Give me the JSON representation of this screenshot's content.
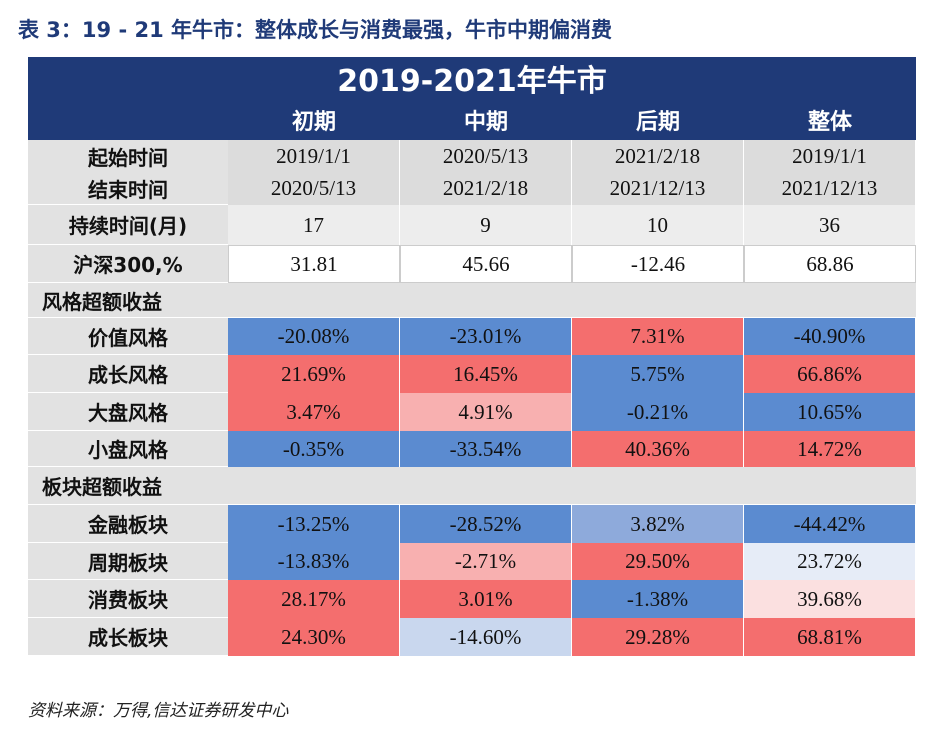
{
  "title": "表 3：19 - 21 年牛市：整体成长与消费最强，牛市中期偏消费",
  "table": {
    "banner": "2019-2021年牛市",
    "columns": [
      "初期",
      "中期",
      "后期",
      "整体"
    ],
    "rows": [
      {
        "label": "起始时间",
        "cells": [
          "2019/1/1",
          "2020/5/13",
          "2021/2/18",
          "2019/1/1"
        ],
        "colors": [
          "#dcdcdc",
          "#dcdcdc",
          "#dcdcdc",
          "#dcdcdc"
        ]
      },
      {
        "label": "结束时间",
        "cells": [
          "2020/5/13",
          "2021/2/18",
          "2021/12/13",
          "2021/12/13"
        ],
        "colors": [
          "#dcdcdc",
          "#dcdcdc",
          "#dcdcdc",
          "#dcdcdc"
        ]
      },
      {
        "label": "持续时间(月)",
        "cells": [
          "17",
          "9",
          "10",
          "36"
        ],
        "colors": [
          "#ededed",
          "#ededed",
          "#ededed",
          "#ededed"
        ]
      },
      {
        "label": "沪深300,%",
        "cells": [
          "31.81",
          "45.66",
          "-12.46",
          "68.86"
        ],
        "colors": [
          "#ffffff",
          "#ffffff",
          "#ffffff",
          "#ffffff"
        ]
      },
      {
        "label": "风格超额收益"
      },
      {
        "label": "价值风格",
        "cells": [
          "-20.08%",
          "-23.01%",
          "7.31%",
          "-40.90%"
        ],
        "colors": [
          "#5b8bd0",
          "#5b8bd0",
          "#f46e6e",
          "#5b8bd0"
        ]
      },
      {
        "label": "成长风格",
        "cells": [
          "21.69%",
          "16.45%",
          "5.75%",
          "66.86%"
        ],
        "colors": [
          "#f46e6e",
          "#f46e6e",
          "#5b8bd0",
          "#f46e6e"
        ]
      },
      {
        "label": "大盘风格",
        "cells": [
          "3.47%",
          "4.91%",
          "-0.21%",
          "10.65%"
        ],
        "colors": [
          "#f46e6e",
          "#f8b0b0",
          "#5b8bd0",
          "#5b8bd0"
        ]
      },
      {
        "label": "小盘风格",
        "cells": [
          "-0.35%",
          "-33.54%",
          "40.36%",
          "14.72%"
        ],
        "colors": [
          "#5b8bd0",
          "#5b8bd0",
          "#f46e6e",
          "#f46e6e"
        ]
      },
      {
        "label": "板块超额收益"
      },
      {
        "label": "金融板块",
        "cells": [
          "-13.25%",
          "-28.52%",
          "3.82%",
          "-44.42%"
        ],
        "colors": [
          "#5b8bd0",
          "#5b8bd0",
          "#8eaadb",
          "#5b8bd0"
        ]
      },
      {
        "label": "周期板块",
        "cells": [
          "-13.83%",
          "-2.71%",
          "29.50%",
          "23.72%"
        ],
        "colors": [
          "#5b8bd0",
          "#f8b0b0",
          "#f46e6e",
          "#e6ecf7"
        ]
      },
      {
        "label": "消费板块",
        "cells": [
          "28.17%",
          "3.01%",
          "-1.38%",
          "39.68%"
        ],
        "colors": [
          "#f46e6e",
          "#f46e6e",
          "#5b8bd0",
          "#fbe0e0"
        ]
      },
      {
        "label": "成长板块",
        "cells": [
          "24.30%",
          "-14.60%",
          "29.28%",
          "68.81%"
        ],
        "colors": [
          "#f46e6e",
          "#c9d7ee",
          "#f46e6e",
          "#f46e6e"
        ]
      }
    ]
  },
  "source": "资料来源：万得,信达证券研发中心"
}
